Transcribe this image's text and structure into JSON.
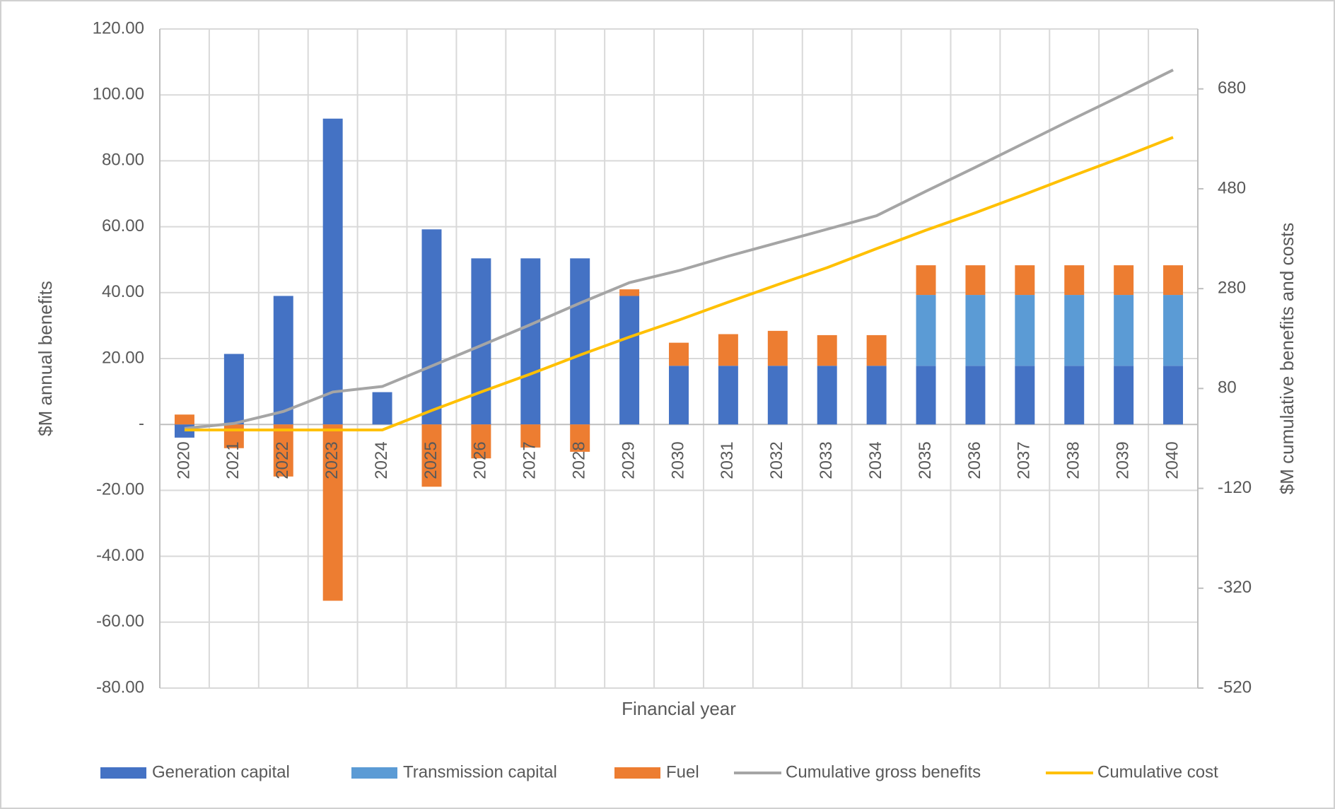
{
  "chart_data": {
    "type": "bar",
    "x_label": "Financial year",
    "y_label": "$M annual benefits",
    "y2_label": "$M cumulative benefits and costs",
    "categories": [
      "2020",
      "2021",
      "2022",
      "2023",
      "2024",
      "2025",
      "2026",
      "2027",
      "2028",
      "2029",
      "2030",
      "2031",
      "2032",
      "2033",
      "2034",
      "2035",
      "2036",
      "2037",
      "2038",
      "2039",
      "2040"
    ],
    "stacked": true,
    "grid": true,
    "legend": "bottom",
    "series": [
      {
        "name": "Generation capital",
        "type": "bar",
        "color": "#4472c4",
        "values": [
          -4,
          21.4,
          39,
          92.8,
          9.8,
          59.2,
          50.4,
          50.4,
          50.4,
          39,
          17.8,
          17.8,
          17.8,
          17.8,
          17.8,
          17.8,
          17.8,
          17.8,
          17.8,
          17.8,
          17.8
        ]
      },
      {
        "name": "Transmission capital",
        "type": "bar",
        "color": "#5b9bd5",
        "values": [
          0,
          0,
          0,
          0,
          0,
          0,
          0,
          0,
          0,
          0,
          0,
          0,
          0,
          0,
          0,
          21.5,
          21.5,
          21.5,
          21.5,
          21.5,
          21.5
        ]
      },
      {
        "name": "Fuel",
        "type": "bar",
        "color": "#ed7d31",
        "values": [
          3,
          -7.2,
          -15.8,
          -53.5,
          0,
          -18.9,
          -10.3,
          -7,
          -8.3,
          2,
          7,
          9.6,
          10.6,
          9.3,
          9.3,
          9,
          9,
          9,
          9,
          9,
          9
        ]
      },
      {
        "name": "Cumulative gross benefits",
        "type": "line",
        "axis": "y2",
        "color": "#a5a5a5",
        "values": [
          0,
          10,
          34,
          73,
          84,
          125,
          166,
          208,
          251,
          292,
          316,
          345,
          372,
          399,
          426,
          475,
          523,
          572,
          621,
          669,
          718
        ]
      },
      {
        "name": "Cumulative cost",
        "type": "line",
        "axis": "y2",
        "color": "#ffc000",
        "values": [
          -3,
          -3,
          -3,
          -3,
          -3,
          36,
          73,
          109,
          147,
          183,
          217,
          253,
          288,
          322,
          360,
          397,
          432,
          469,
          507,
          544,
          583
        ]
      }
    ],
    "ylim": [
      -80,
      120
    ],
    "yticks": [
      {
        "value": -80,
        "label": "-80.00"
      },
      {
        "value": -60,
        "label": "-60.00"
      },
      {
        "value": -40,
        "label": "-40.00"
      },
      {
        "value": -20,
        "label": "-20.00"
      },
      {
        "value": 0,
        "label": "-"
      },
      {
        "value": 20,
        "label": "20.00"
      },
      {
        "value": 40,
        "label": "40.00"
      },
      {
        "value": 60,
        "label": "60.00"
      },
      {
        "value": 80,
        "label": "80.00"
      },
      {
        "value": 100,
        "label": "100.00"
      },
      {
        "value": 120,
        "label": "120.00"
      }
    ],
    "y2lim": [
      -520,
      800
    ],
    "y2ticks": [
      -520,
      -320,
      -120,
      80,
      280,
      480,
      680
    ]
  }
}
